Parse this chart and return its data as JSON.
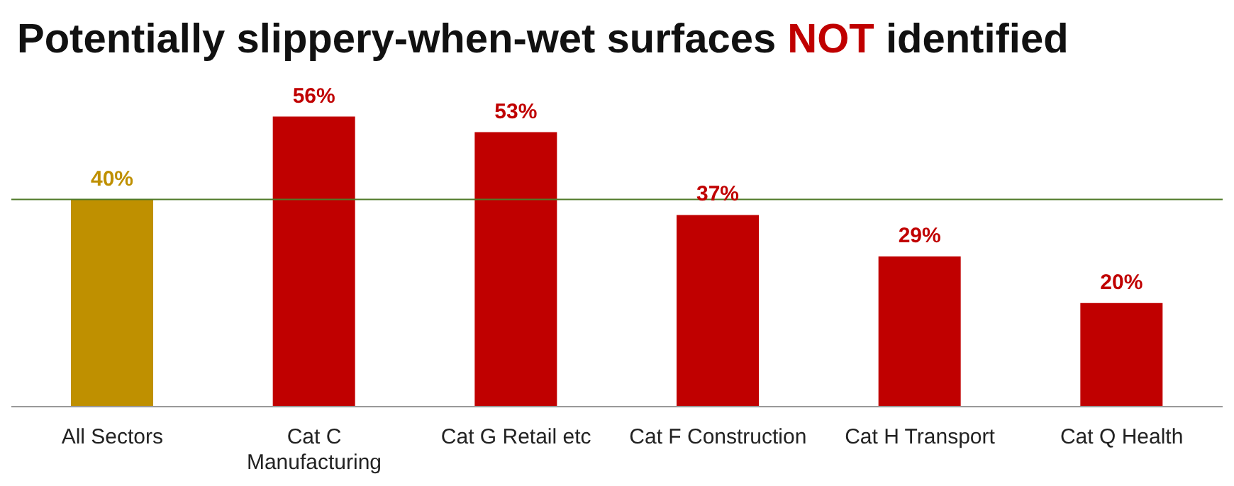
{
  "chart_data": {
    "type": "bar",
    "title": "Potentially slippery-when-wet surfaces NOT identified",
    "categories": [
      "All Sectors",
      "Cat C Manufacturing",
      "Cat G Retail etc",
      "Cat F Construction",
      "Cat H Transport",
      "Cat Q Health"
    ],
    "values": [
      40,
      56,
      53,
      37,
      29,
      20
    ],
    "colors": [
      "#bf9000",
      "#c00000",
      "#c00000",
      "#c00000",
      "#c00000",
      "#c00000"
    ],
    "value_labels": [
      "40%",
      "56%",
      "53%",
      "37%",
      "29%",
      "20%"
    ],
    "ref_lines": [
      {
        "axis": "y",
        "value": 40,
        "color": "#4f7a28"
      }
    ]
  }
}
